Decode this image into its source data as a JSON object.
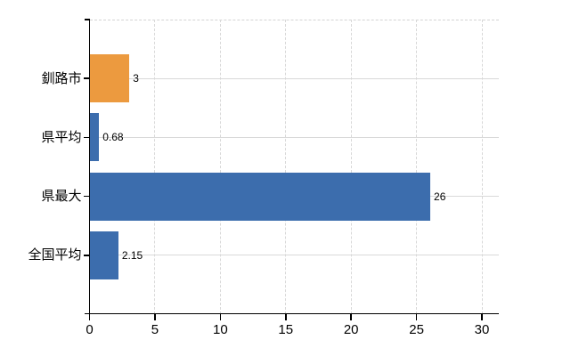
{
  "chart_data": {
    "type": "bar",
    "orientation": "horizontal",
    "title": "",
    "categories": [
      "釧路市",
      "県平均",
      "県最大",
      "全国平均"
    ],
    "values": [
      3,
      0.68,
      26,
      2.15
    ],
    "value_labels": [
      "3",
      "0.68",
      "26",
      "2.15"
    ],
    "bar_colors": [
      "#ec9a3f",
      "#3c6dad",
      "#3c6dad",
      "#3c6dad"
    ],
    "x_ticks": [
      "0",
      "5",
      "10",
      "15",
      "20",
      "25",
      "30"
    ],
    "x_tick_values": [
      0,
      5,
      10,
      15,
      20,
      25,
      30
    ],
    "xlim": [
      0,
      31.3
    ],
    "grid": {
      "vertical_lines": "dashed",
      "horizontal_category_lines": "solid",
      "top_border": "dashed"
    },
    "legend_position": "none"
  },
  "colors": {
    "bar_default": "#3c6dad",
    "bar_highlight": "#ec9a3f",
    "grid": "#d9d9d9",
    "axis": "#000000",
    "text": "#000000",
    "background": "#ffffff"
  }
}
